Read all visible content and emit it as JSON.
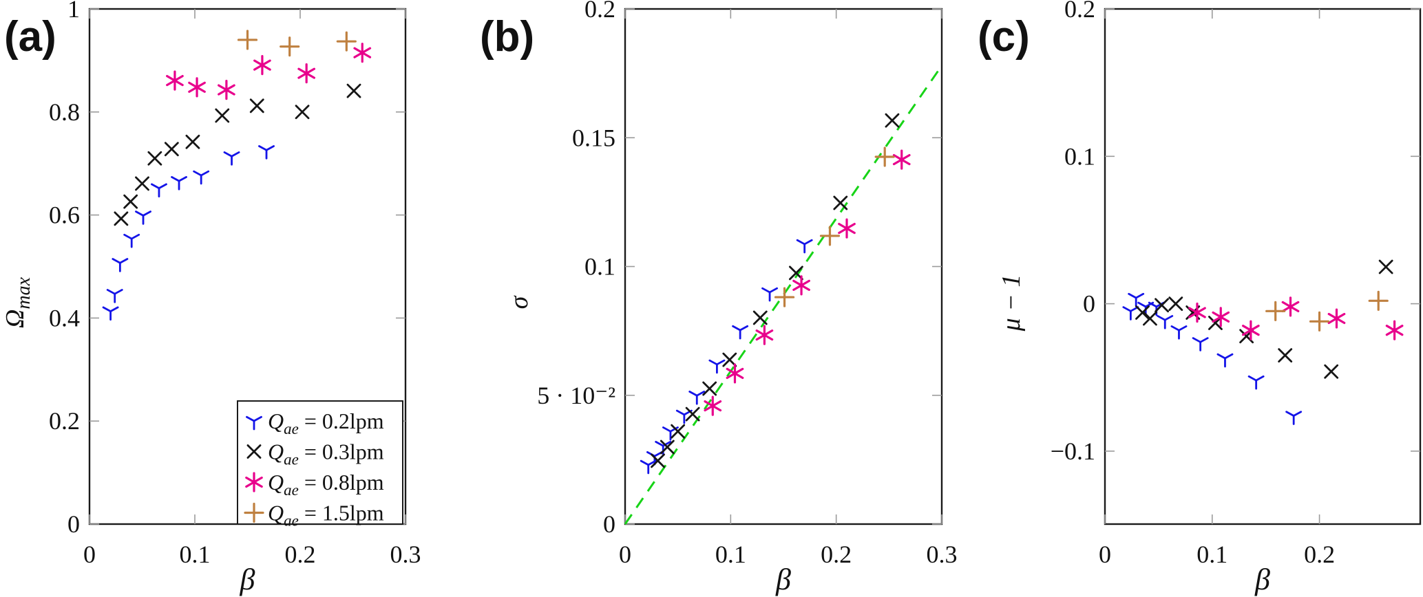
{
  "figure": {
    "background": "#ffffff",
    "axis_color": "#1a1a1a",
    "tick_color": "#9b9b9b",
    "text_color": "#111111"
  },
  "chart_data": [
    {
      "type": "scatter",
      "panel_label": "(a)",
      "xlabel": "β",
      "ylabel": "Ω",
      "ylabel_sub": "max",
      "xlim": [
        0,
        0.3
      ],
      "ylim": [
        0,
        1
      ],
      "grid": false,
      "xticks": {
        "values": [
          0,
          0.1,
          0.2,
          0.3
        ],
        "labels": [
          "0",
          "0.1",
          "0.2",
          "0.3"
        ]
      },
      "yticks": {
        "values": [
          0,
          0.2,
          0.4,
          0.6,
          0.8,
          1
        ],
        "labels": [
          "0",
          "0.2",
          "0.4",
          "0.6",
          "0.8",
          "1"
        ]
      },
      "legend": {
        "position": "south east",
        "visible": true
      },
      "series": [
        {
          "name": "Qae = 0.2lpm",
          "legend_prefix": "Q",
          "legend_sub": "ae",
          "legend_suffix": " = 0.2lpm",
          "marker": "tripod",
          "color": "#1414e8",
          "points": [
            [
              0.02,
              0.413
            ],
            [
              0.024,
              0.447
            ],
            [
              0.029,
              0.507
            ],
            [
              0.04,
              0.554
            ],
            [
              0.051,
              0.599
            ],
            [
              0.066,
              0.652
            ],
            [
              0.085,
              0.666
            ],
            [
              0.106,
              0.677
            ],
            [
              0.135,
              0.714
            ],
            [
              0.168,
              0.726
            ]
          ]
        },
        {
          "name": "Qae = 0.3lpm",
          "legend_prefix": "Q",
          "legend_sub": "ae",
          "legend_suffix": " = 0.3lpm",
          "marker": "cross",
          "color": "#161616",
          "points": [
            [
              0.03,
              0.593
            ],
            [
              0.039,
              0.626
            ],
            [
              0.05,
              0.661
            ],
            [
              0.062,
              0.71
            ],
            [
              0.078,
              0.728
            ],
            [
              0.098,
              0.742
            ],
            [
              0.126,
              0.793
            ],
            [
              0.159,
              0.812
            ],
            [
              0.202,
              0.8
            ],
            [
              0.251,
              0.841
            ]
          ]
        },
        {
          "name": "Qae = 0.8lpm",
          "legend_prefix": "Q",
          "legend_sub": "ae",
          "legend_suffix": " = 0.8lpm",
          "marker": "asterisk",
          "color": "#e8008c",
          "points": [
            [
              0.081,
              0.861
            ],
            [
              0.102,
              0.848
            ],
            [
              0.13,
              0.843
            ],
            [
              0.164,
              0.891
            ],
            [
              0.206,
              0.875
            ],
            [
              0.259,
              0.915
            ]
          ]
        },
        {
          "name": "Qae = 1.5lpm",
          "legend_prefix": "Q",
          "legend_sub": "ae",
          "legend_suffix": " = 1.5lpm",
          "marker": "plus",
          "color": "#bf8040",
          "points": [
            [
              0.15,
              0.94
            ],
            [
              0.19,
              0.927
            ],
            [
              0.244,
              0.937
            ]
          ]
        }
      ]
    },
    {
      "type": "scatter",
      "panel_label": "(b)",
      "xlabel": "β",
      "ylabel": "σ",
      "ylabel_sub": "",
      "xlim": [
        0,
        0.3
      ],
      "ylim": [
        0,
        0.2
      ],
      "grid": false,
      "xticks": {
        "values": [
          0,
          0.1,
          0.2,
          0.3
        ],
        "labels": [
          "0",
          "0.1",
          "0.2",
          "0.3"
        ]
      },
      "yticks": {
        "values": [
          0,
          0.05,
          0.1,
          0.15,
          0.2
        ],
        "labels": [
          "0",
          "5 · 10⁻²",
          "0.1",
          "0.15",
          "0.2"
        ]
      },
      "legend": {
        "visible": false
      },
      "reference_line": {
        "style": "dashed",
        "color": "#17d417",
        "from": [
          0,
          0
        ],
        "to": [
          0.3,
          0.178
        ]
      },
      "series": [
        {
          "name": "Qae = 0.2lpm",
          "marker": "tripod",
          "color": "#1414e8",
          "points": [
            [
              0.022,
              0.023
            ],
            [
              0.028,
              0.0264
            ],
            [
              0.036,
              0.0304
            ],
            [
              0.043,
              0.036
            ],
            [
              0.056,
              0.0425
            ],
            [
              0.068,
              0.0499
            ],
            [
              0.087,
              0.062
            ],
            [
              0.109,
              0.0753
            ],
            [
              0.137,
              0.09
            ],
            [
              0.17,
              0.1087
            ]
          ]
        },
        {
          "name": "Qae = 0.3lpm",
          "marker": "cross",
          "color": "#161616",
          "points": [
            [
              0.031,
              0.0246
            ],
            [
              0.04,
              0.0299
            ],
            [
              0.05,
              0.036
            ],
            [
              0.064,
              0.0427
            ],
            [
              0.08,
              0.0526
            ],
            [
              0.099,
              0.0638
            ],
            [
              0.128,
              0.0801
            ],
            [
              0.162,
              0.0975
            ],
            [
              0.204,
              0.1247
            ],
            [
              0.253,
              0.1567
            ]
          ]
        },
        {
          "name": "Qae = 0.8lpm",
          "marker": "asterisk",
          "color": "#e8008c",
          "points": [
            [
              0.083,
              0.0459
            ],
            [
              0.104,
              0.0585
            ],
            [
              0.132,
              0.0734
            ],
            [
              0.167,
              0.0927
            ],
            [
              0.21,
              0.1148
            ],
            [
              0.262,
              0.1415
            ]
          ]
        },
        {
          "name": "Qae = 1.5lpm",
          "marker": "plus",
          "color": "#bf8040",
          "points": [
            [
              0.151,
              0.0881
            ],
            [
              0.194,
              0.1119
            ],
            [
              0.246,
              0.1426
            ]
          ]
        }
      ]
    },
    {
      "type": "scatter",
      "panel_label": "(c)",
      "xlabel": "β",
      "ylabel": "μ − 1",
      "ylabel_sub": "",
      "xlim": [
        0,
        0.294
      ],
      "ylim": [
        -0.1495,
        0.2
      ],
      "grid": false,
      "xticks": {
        "values": [
          0,
          0.1,
          0.2
        ],
        "labels": [
          "0",
          "0.1",
          "0.2"
        ]
      },
      "yticks": {
        "values": [
          -0.1,
          0,
          0.1,
          0.2
        ],
        "labels": [
          "−0.1",
          "0",
          "0.1",
          "0.2"
        ]
      },
      "legend": {
        "visible": false
      },
      "series": [
        {
          "name": "Qae = 0.2lpm",
          "marker": "tripod",
          "color": "#1414e8",
          "points": [
            [
              0.024,
              -0.005
            ],
            [
              0.029,
              0.004
            ],
            [
              0.038,
              -0.002
            ],
            [
              0.048,
              -0.002
            ],
            [
              0.056,
              -0.011
            ],
            [
              0.069,
              -0.018
            ],
            [
              0.089,
              -0.026
            ],
            [
              0.112,
              -0.037
            ],
            [
              0.141,
              -0.052
            ],
            [
              0.176,
              -0.076
            ]
          ]
        },
        {
          "name": "Qae = 0.3lpm",
          "marker": "cross",
          "color": "#161616",
          "points": [
            [
              0.035,
              -0.006
            ],
            [
              0.042,
              -0.01
            ],
            [
              0.053,
              -0.001
            ],
            [
              0.066,
              0.0
            ],
            [
              0.082,
              -0.006
            ],
            [
              0.103,
              -0.013
            ],
            [
              0.132,
              -0.022
            ],
            [
              0.168,
              -0.035
            ],
            [
              0.211,
              -0.046
            ],
            [
              0.262,
              0.025
            ]
          ]
        },
        {
          "name": "Qae = 0.8lpm",
          "marker": "asterisk",
          "color": "#e8008c",
          "points": [
            [
              0.086,
              -0.006
            ],
            [
              0.108,
              -0.009
            ],
            [
              0.136,
              -0.018
            ],
            [
              0.173,
              -0.002
            ],
            [
              0.216,
              -0.01
            ],
            [
              0.27,
              -0.018
            ]
          ]
        },
        {
          "name": "Qae = 1.5lpm",
          "marker": "plus",
          "color": "#bf8040",
          "points": [
            [
              0.159,
              -0.005
            ],
            [
              0.2,
              -0.012
            ],
            [
              0.255,
              0.002
            ]
          ]
        }
      ]
    }
  ]
}
